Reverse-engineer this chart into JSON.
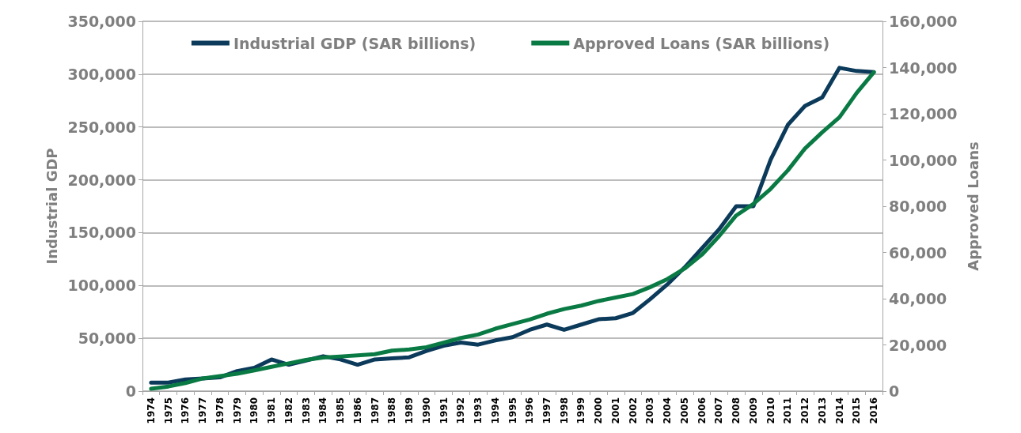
{
  "chart_data": {
    "type": "line",
    "ylabel": "Industrial GDP",
    "y2label": "Approved Loans",
    "categories": [
      "1974",
      "1975",
      "1976",
      "1977",
      "1978",
      "1979",
      "1980",
      "1981",
      "1982",
      "1983",
      "1984",
      "1985",
      "1986",
      "1987",
      "1988",
      "1989",
      "1990",
      "1991",
      "1992",
      "1993",
      "1994",
      "1995",
      "1996",
      "1997",
      "1998",
      "1999",
      "2000",
      "2001",
      "2002",
      "2003",
      "2004",
      "2005",
      "2006",
      "2007",
      "2008",
      "2009",
      "2010",
      "2011",
      "2012",
      "2013",
      "2014",
      "2015",
      "2016"
    ],
    "series": [
      {
        "name": "Industrial GDP (SAR billions)",
        "color": "#0b3a5a",
        "values": [
          8000,
          8000,
          11000,
          12000,
          13000,
          19000,
          22000,
          30000,
          25000,
          29000,
          33000,
          30000,
          25000,
          30000,
          31000,
          32000,
          38000,
          43000,
          46000,
          44000,
          48000,
          51000,
          58000,
          63000,
          58000,
          63000,
          68000,
          69000,
          74000,
          87000,
          101000,
          117000,
          135000,
          153000,
          175000,
          175000,
          219000,
          252000,
          270000,
          278000,
          306000,
          303000,
          302000
        ]
      },
      {
        "name": "Approved Loans (SAR billions)",
        "color": "#0a7a44",
        "axis": "y2",
        "values": [
          1000,
          2000,
          3500,
          5500,
          6500,
          7500,
          9000,
          10500,
          12000,
          13500,
          14500,
          15000,
          15500,
          16000,
          17500,
          18000,
          19000,
          21000,
          23000,
          24500,
          27000,
          29000,
          31000,
          33500,
          35500,
          37000,
          39000,
          40500,
          42000,
          45000,
          48500,
          53000,
          59000,
          67000,
          76000,
          81000,
          87500,
          95500,
          105000,
          112000,
          118500,
          129000,
          138000
        ]
      }
    ],
    "ylim": [
      0,
      350000
    ],
    "yticks": [
      0,
      {
        "value": 50000,
        "label": "50,000"
      },
      {
        "value": 100000,
        "label": "100,000"
      },
      {
        "value": 150000,
        "label": "150,000"
      },
      {
        "value": 200000,
        "label": "200,000"
      },
      {
        "value": 250000,
        "label": "250,000"
      },
      {
        "value": 300000,
        "label": "300,000"
      },
      {
        "value": 350000,
        "label": "350,000"
      }
    ],
    "y2lim": [
      0,
      160000
    ],
    "y2ticks": [
      0,
      {
        "value": 20000,
        "label": "20,000"
      },
      {
        "value": 40000,
        "label": "40,000"
      },
      {
        "value": 60000,
        "label": "60,000"
      },
      {
        "value": 80000,
        "label": "80,000"
      },
      {
        "value": 100000,
        "label": "100,000"
      },
      {
        "value": 120000,
        "label": "120,000"
      },
      {
        "value": 140000,
        "label": "140,000"
      },
      {
        "value": 160000,
        "label": "160,000"
      }
    ],
    "grid": "y",
    "legend": "top",
    "marker": "none",
    "line_style": "solid"
  }
}
